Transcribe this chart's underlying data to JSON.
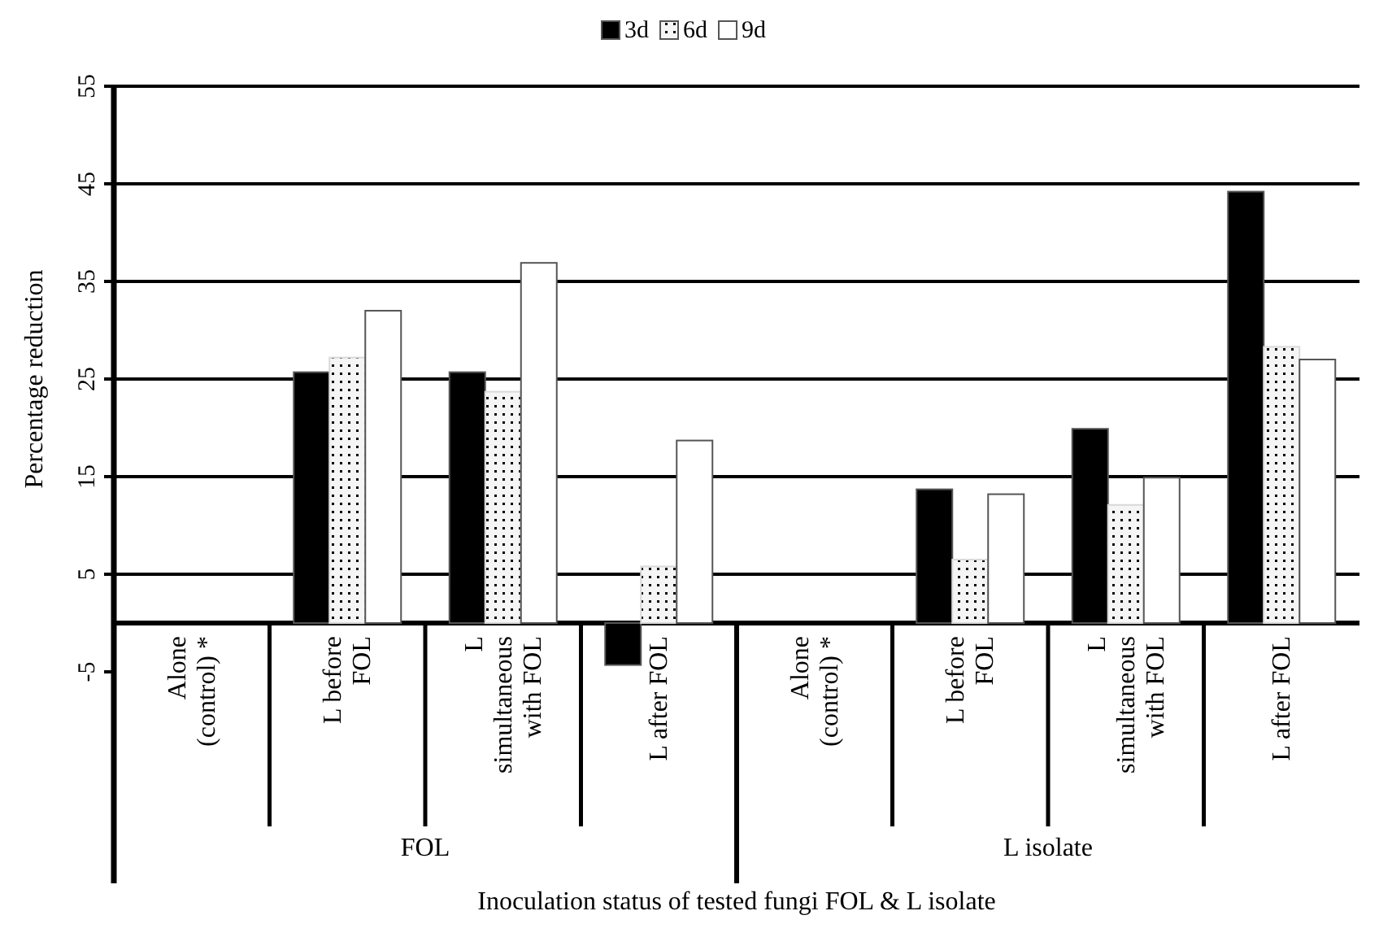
{
  "chart_data": {
    "type": "bar",
    "xlabel": "Inoculation status of tested fungi FOL & L isolate",
    "ylabel": "Percentage reduction",
    "categories": [
      "Alone (control) *",
      "L before FOL",
      "L simultaneous with FOL",
      "L after FOL",
      "Alone (control) *",
      "L before FOL",
      "L simultaneous with FOL",
      "L after FOL"
    ],
    "series": [
      {
        "name": "3d",
        "color": "#000000",
        "values": [
          null,
          25.7,
          25.7,
          -4.3,
          null,
          13.7,
          19.9,
          44.2
        ]
      },
      {
        "name": "6d",
        "color": "#d9d9d9",
        "values": [
          null,
          27.2,
          23.7,
          5.8,
          null,
          6.5,
          12.1,
          28.3
        ]
      },
      {
        "name": "9d",
        "color": "#ffffff",
        "values": [
          null,
          32.0,
          36.9,
          18.7,
          null,
          13.2,
          14.9,
          27.0
        ]
      }
    ],
    "annotations": [
      "FOL",
      "L isolate"
    ],
    "ylim": [
      -5,
      55
    ],
    "yticks": [
      -5,
      5,
      15,
      25,
      35,
      45,
      55
    ],
    "grid": "y",
    "legend": "top"
  }
}
